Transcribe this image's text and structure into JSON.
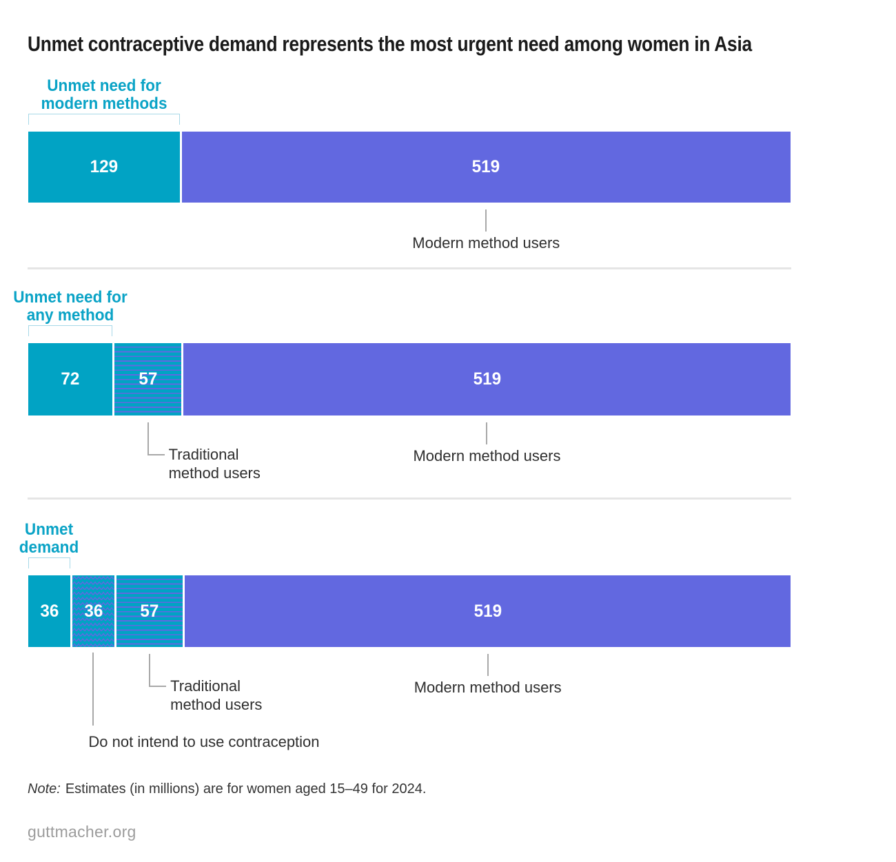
{
  "title": "Unmet contraceptive demand represents the most urgent need among women in Asia",
  "note": {
    "prefix": "Note:",
    "text": "Estimates (in millions) are for women aged 15–49 for 2024."
  },
  "footer": "guttmacher.org",
  "colors": {
    "teal": "#01a3c4",
    "purple": "#6268e0",
    "teal_label": "#0aa3c6",
    "bracket": "#a6d8e7",
    "connector": "#a8a8a8",
    "divider": "#e5e5e5",
    "value_text": "#ffffff",
    "label_text": "#2e2e2e",
    "footer_text": "#9c9c9c"
  },
  "chart_data": {
    "type": "bar",
    "orientation": "horizontal-stacked",
    "unit": "millions of women aged 15-49, 2024",
    "axis_total": 648,
    "grid": false,
    "legend": false,
    "bars": [
      {
        "id": "unmet-need-modern-methods",
        "heading_lines": [
          "Unmet need for",
          "modern methods"
        ],
        "segments": [
          {
            "value": 129,
            "pattern": "solid-teal",
            "name": "unmet-need-for-modern-methods",
            "bracket": true
          },
          {
            "value": 519,
            "pattern": "solid-purple",
            "name": "modern-method-users",
            "callout": {
              "type": "tick",
              "text": "Modern method users"
            }
          }
        ]
      },
      {
        "id": "unmet-need-any-method",
        "heading_lines": [
          "Unmet need for",
          "any method"
        ],
        "segments": [
          {
            "value": 72,
            "pattern": "solid-teal",
            "name": "unmet-need-for-any-method",
            "bracket": true
          },
          {
            "value": 57,
            "pattern": "stripes",
            "name": "traditional-method-users",
            "callout": {
              "type": "elbow",
              "lines": [
                "Traditional",
                "method users"
              ]
            }
          },
          {
            "value": 519,
            "pattern": "solid-purple",
            "name": "modern-method-users",
            "callout": {
              "type": "tick",
              "text": "Modern method users"
            }
          }
        ]
      },
      {
        "id": "unmet-demand",
        "heading_lines": [
          "Unmet",
          "demand"
        ],
        "segments": [
          {
            "value": 36,
            "pattern": "solid-teal",
            "name": "unmet-need",
            "bracket": true
          },
          {
            "value": 36,
            "pattern": "zigzag",
            "name": "do-not-intend-to-use",
            "callout": {
              "type": "tick-long",
              "text": "Do not intend to use contraception"
            }
          },
          {
            "value": 57,
            "pattern": "stripes",
            "name": "traditional-method-users",
            "callout": {
              "type": "elbow",
              "lines": [
                "Traditional",
                "method users"
              ]
            }
          },
          {
            "value": 519,
            "pattern": "solid-purple",
            "name": "modern-method-users",
            "callout": {
              "type": "tick",
              "text": "Modern method users"
            }
          }
        ]
      }
    ]
  }
}
